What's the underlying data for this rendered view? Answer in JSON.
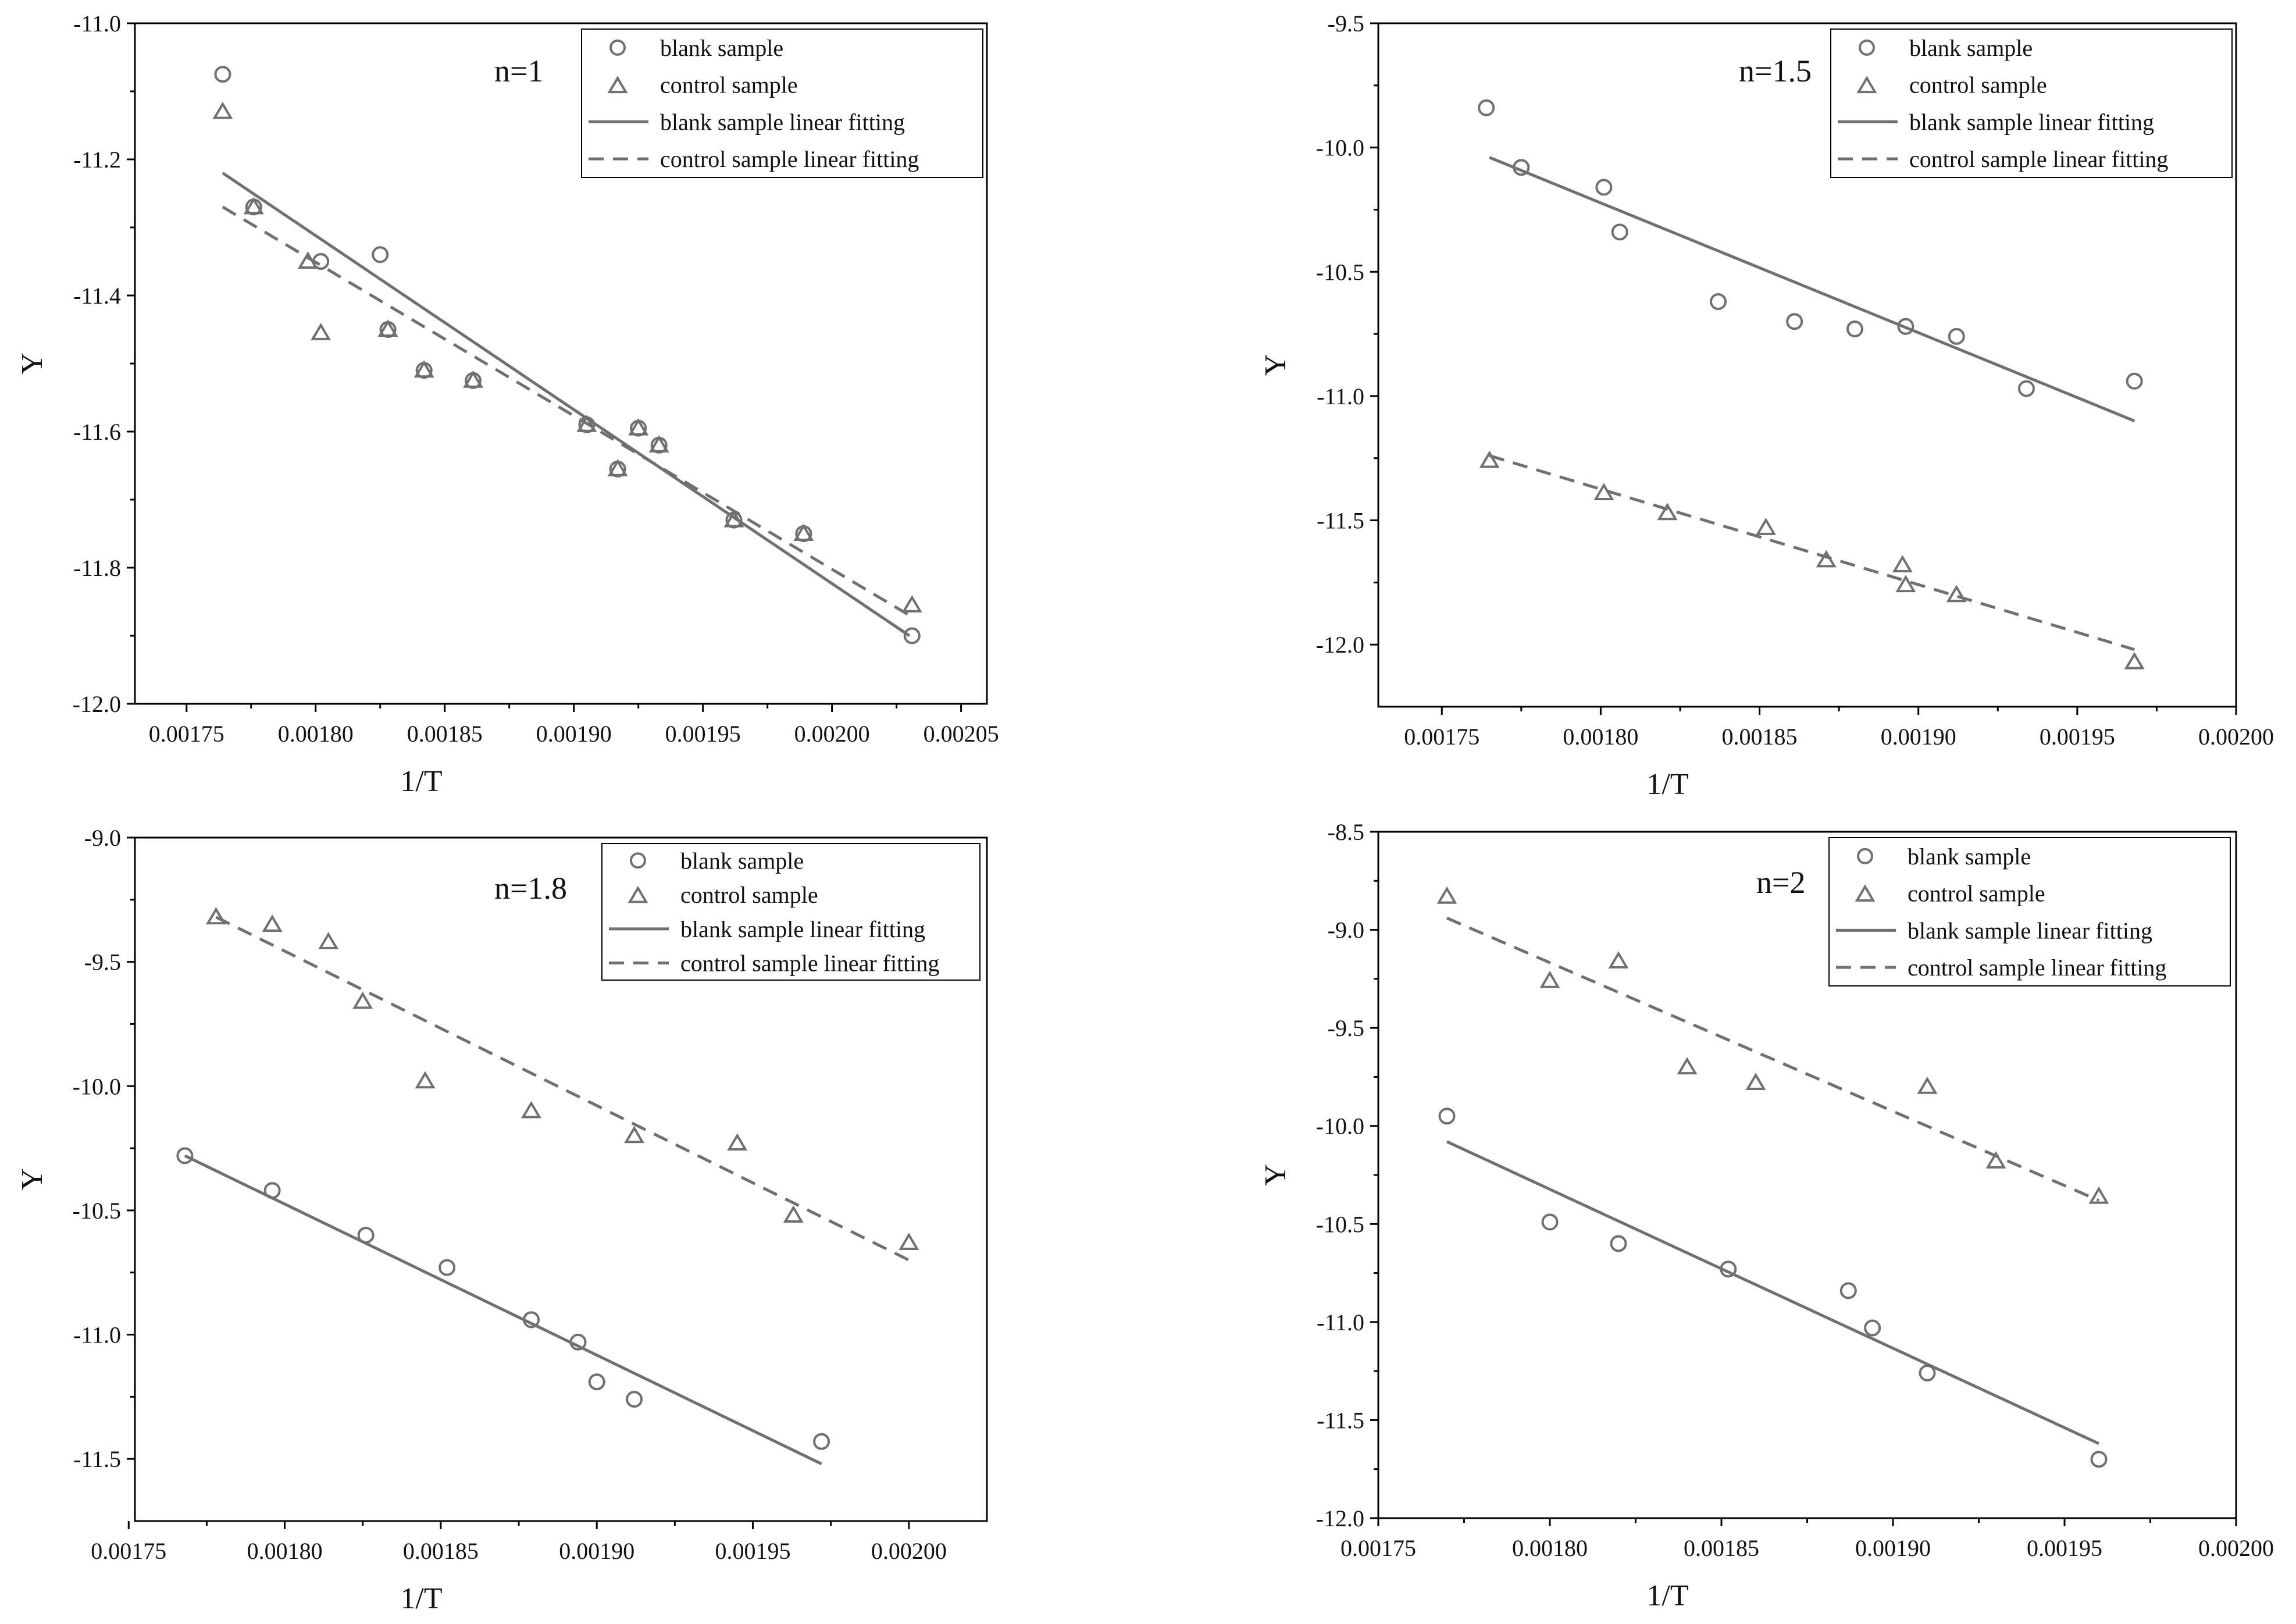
{
  "colors": {
    "marker": "#707070",
    "line": "#707070",
    "axis": "#000000",
    "text": "#111111"
  },
  "chart_data": [
    {
      "type": "scatter",
      "annotation": "n=1",
      "xlabel": "1/T",
      "ylabel": "Y",
      "xlim": [
        0.00173,
        0.00206
      ],
      "ylim": [
        -12.0,
        -11.0
      ],
      "xticks": [
        0.00175,
        0.0018,
        0.00185,
        0.0019,
        0.00195,
        0.002,
        0.00205
      ],
      "xtick_labels": [
        "0.00175",
        "0.00180",
        "0.00185",
        "0.00190",
        "0.00195",
        "0.00200",
        "0.00205"
      ],
      "yticks": [
        -11.0,
        -11.2,
        -11.4,
        -11.6,
        -11.8,
        -12.0
      ],
      "ytick_labels": [
        "-11.0",
        "-11.2",
        "-11.4",
        "-11.6",
        "-11.8",
        "-12.0"
      ],
      "legend": [
        "blank sample",
        "control sample",
        "blank sample linear fitting",
        "control sample linear fitting"
      ],
      "blank": {
        "x": [
          0.001764,
          0.001776,
          0.001802,
          0.001825,
          0.001828,
          0.001842,
          0.001861,
          0.001905,
          0.001917,
          0.001925,
          0.001933,
          0.001962,
          0.001989,
          0.002031
        ],
        "y": [
          -11.075,
          -11.27,
          -11.35,
          -11.34,
          -11.45,
          -11.51,
          -11.525,
          -11.59,
          -11.655,
          -11.595,
          -11.62,
          -11.73,
          -11.75,
          -11.9
        ]
      },
      "control": {
        "x": [
          0.001764,
          0.001776,
          0.001797,
          0.001802,
          0.001828,
          0.001842,
          0.001861,
          0.001905,
          0.001917,
          0.001925,
          0.001933,
          0.001962,
          0.001989,
          0.002031
        ],
        "y": [
          -11.13,
          -11.27,
          -11.35,
          -11.455,
          -11.45,
          -11.51,
          -11.525,
          -11.59,
          -11.655,
          -11.595,
          -11.62,
          -11.73,
          -11.75,
          -11.855
        ]
      },
      "blank_fit": {
        "x": [
          0.001764,
          0.00203
        ],
        "y": [
          -11.22,
          -11.9
        ]
      },
      "control_fit": {
        "x": [
          0.001764,
          0.00203
        ],
        "y": [
          -11.27,
          -11.87
        ]
      }
    },
    {
      "type": "scatter",
      "annotation": "n=1.5",
      "xlabel": "1/T",
      "ylabel": "Y",
      "xlim": [
        0.00173,
        0.002
      ],
      "ylim": [
        -12.25,
        -9.5
      ],
      "xticks": [
        0.00175,
        0.0018,
        0.00185,
        0.0019,
        0.00195,
        0.002
      ],
      "xtick_labels": [
        "0.00175",
        "0.00180",
        "0.00185",
        "0.00190",
        "0.00195",
        "0.00200"
      ],
      "yticks": [
        -9.5,
        -10.0,
        -10.5,
        -11.0,
        -11.5,
        -12.0
      ],
      "ytick_labels": [
        "-9.5",
        "-10.0",
        "-10.5",
        "-11.0",
        "-11.5",
        "-12.0"
      ],
      "legend": [
        "blank sample",
        "control sample",
        "blank sample linear fitting",
        "control sample linear fitting"
      ],
      "blank": {
        "x": [
          0.001764,
          0.001775,
          0.001801,
          0.001806,
          0.001837,
          0.001861,
          0.00188,
          0.001896,
          0.001912,
          0.001934,
          0.001968
        ],
        "y": [
          -9.84,
          -10.08,
          -10.16,
          -10.34,
          -10.62,
          -10.7,
          -10.73,
          -10.72,
          -10.76,
          -10.97,
          -10.94
        ]
      },
      "control": {
        "x": [
          0.001765,
          0.001801,
          0.001821,
          0.001852,
          0.001871,
          0.001895,
          0.001896,
          0.001912,
          0.001968
        ],
        "y": [
          -11.26,
          -11.39,
          -11.47,
          -11.53,
          -11.66,
          -11.68,
          -11.76,
          -11.8,
          -12.07
        ]
      },
      "blank_fit": {
        "x": [
          0.001765,
          0.001968
        ],
        "y": [
          -10.04,
          -11.1
        ]
      },
      "control_fit": {
        "x": [
          0.001765,
          0.001968
        ],
        "y": [
          -11.24,
          -12.02
        ]
      }
    },
    {
      "type": "scatter",
      "annotation": "n=1.8",
      "xlabel": "1/T",
      "ylabel": "Y",
      "xlim": [
        0.001752,
        0.002025
      ],
      "ylim": [
        -11.75,
        -9.0
      ],
      "xticks": [
        0.00175,
        0.0018,
        0.00185,
        0.0019,
        0.00195,
        0.002
      ],
      "xtick_labels": [
        "0.00175",
        "0.00180",
        "0.00185",
        "0.00190",
        "0.00195",
        "0.00200"
      ],
      "yticks": [
        -9.0,
        -9.5,
        -10.0,
        -10.5,
        -11.0,
        -11.5
      ],
      "ytick_labels": [
        "-9.0",
        "-9.5",
        "-10.0",
        "-10.5",
        "-11.0",
        "-11.5"
      ],
      "legend": [
        "blank sample",
        "control sample",
        "blank sample linear fitting",
        "control sample linear fitting"
      ],
      "blank": {
        "x": [
          0.001768,
          0.001796,
          0.001826,
          0.001852,
          0.001879,
          0.001894,
          0.0019,
          0.001912,
          0.001972
        ],
        "y": [
          -10.28,
          -10.42,
          -10.6,
          -10.73,
          -10.94,
          -11.03,
          -11.19,
          -11.26,
          -11.43
        ]
      },
      "control": {
        "x": [
          0.001778,
          0.001796,
          0.001814,
          0.001825,
          0.001845,
          0.001879,
          0.001912,
          0.001945,
          0.001963,
          0.002
        ],
        "y": [
          -9.32,
          -9.35,
          -9.42,
          -9.66,
          -9.98,
          -10.1,
          -10.2,
          -10.23,
          -10.52,
          -10.63
        ]
      },
      "blank_fit": {
        "x": [
          0.001768,
          0.001972
        ],
        "y": [
          -10.28,
          -11.52
        ]
      },
      "control_fit": {
        "x": [
          0.001778,
          0.002
        ],
        "y": [
          -9.32,
          -10.7
        ]
      }
    },
    {
      "type": "scatter",
      "annotation": "n=2",
      "xlabel": "1/T",
      "ylabel": "Y",
      "xlim": [
        0.00175,
        0.002
      ],
      "ylim": [
        -12.0,
        -8.5
      ],
      "xticks": [
        0.00175,
        0.0018,
        0.00185,
        0.0019,
        0.00195,
        0.002
      ],
      "xtick_labels": [
        "0.00175",
        "0.00180",
        "0.00185",
        "0.00190",
        "0.00195",
        "0.00200"
      ],
      "yticks": [
        -8.5,
        -9.0,
        -9.5,
        -10.0,
        -10.5,
        -11.0,
        -11.5,
        -12.0
      ],
      "ytick_labels": [
        "-8.5",
        "-9.0",
        "-9.5",
        "-10.0",
        "-10.5",
        "-11.0",
        "-11.5",
        "-12.0"
      ],
      "legend": [
        "blank sample",
        "control sample",
        "blank sample linear fitting",
        "control sample linear fitting"
      ],
      "blank": {
        "x": [
          0.00177,
          0.0018,
          0.00182,
          0.001852,
          0.001887,
          0.001894,
          0.00191,
          0.00196
        ],
        "y": [
          -9.95,
          -10.49,
          -10.6,
          -10.73,
          -10.84,
          -11.03,
          -11.26,
          -11.7
        ]
      },
      "control": {
        "x": [
          0.00177,
          0.0018,
          0.00182,
          0.00184,
          0.00186,
          0.00191,
          0.00193,
          0.00196
        ],
        "y": [
          -8.83,
          -9.26,
          -9.16,
          -9.7,
          -9.78,
          -9.8,
          -10.18,
          -10.36
        ]
      },
      "blank_fit": {
        "x": [
          0.00177,
          0.00196
        ],
        "y": [
          -10.08,
          -11.62
        ]
      },
      "control_fit": {
        "x": [
          0.00177,
          0.00196
        ],
        "y": [
          -8.94,
          -10.38
        ]
      }
    }
  ]
}
